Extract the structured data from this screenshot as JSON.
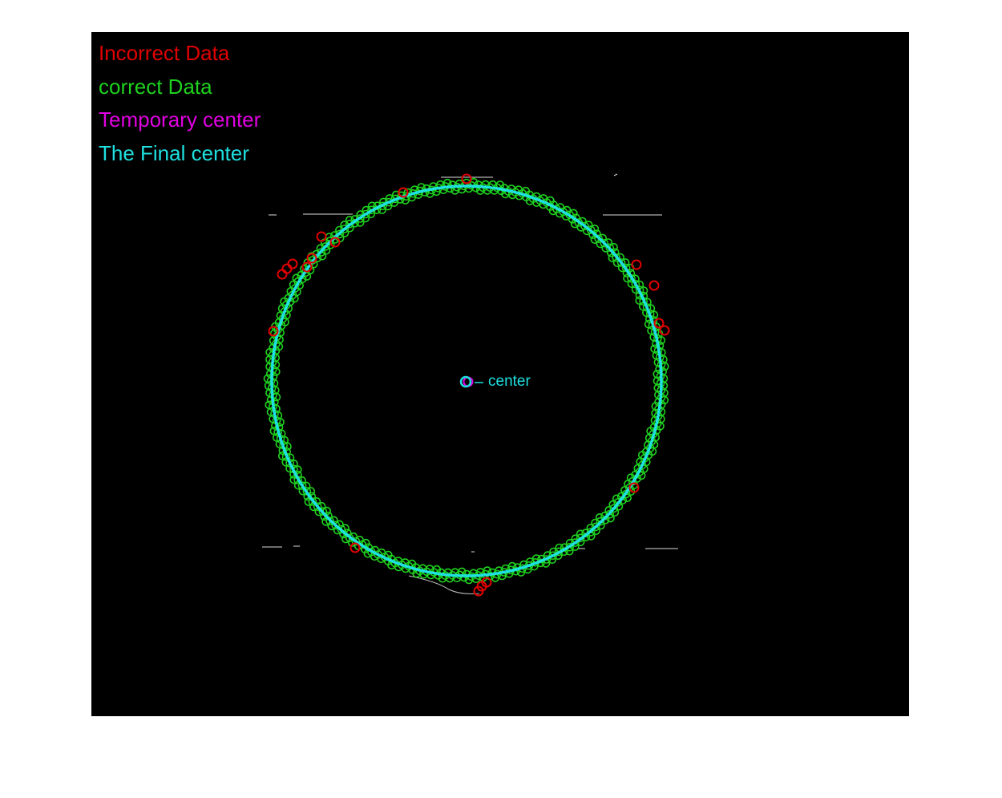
{
  "legend": {
    "items": [
      {
        "label": "Incorrect Data",
        "color": "#e00000"
      },
      {
        "label": "correct Data",
        "color": "#1fd21f"
      },
      {
        "label": "Temporary center",
        "color": "#e000e0"
      },
      {
        "label": "The Final center",
        "color": "#1fe0e0"
      }
    ]
  },
  "annotation": {
    "center_label": "center"
  },
  "colors": {
    "background": "#000000",
    "incorrect": "#e00000",
    "correct": "#1fd21f",
    "temporary": "#e000e0",
    "final": "#1fe0e0",
    "edge": "#ffffff"
  }
}
